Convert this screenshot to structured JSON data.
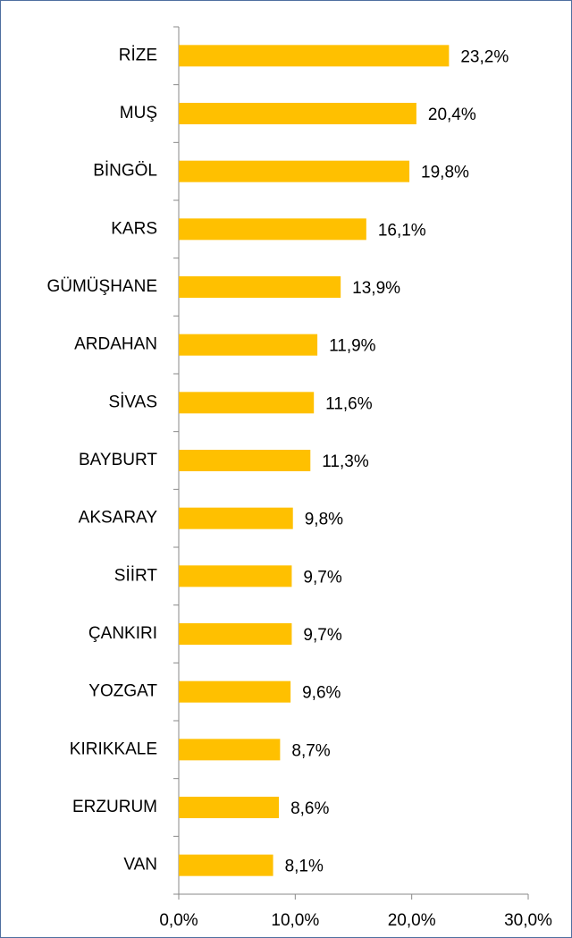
{
  "chart_data": {
    "type": "bar",
    "orientation": "horizontal",
    "categories": [
      "RİZE",
      "MUŞ",
      "BİNGÖL",
      "KARS",
      "GÜMÜŞHANE",
      "ARDAHAN",
      "SİVAS",
      "BAYBURT",
      "AKSARAY",
      "SİİRT",
      "ÇANKIRI",
      "YOZGAT",
      "KIRIKKALE",
      "ERZURUM",
      "VAN"
    ],
    "values": [
      23.2,
      20.4,
      19.8,
      16.1,
      13.9,
      11.9,
      11.6,
      11.3,
      9.8,
      9.7,
      9.7,
      9.6,
      8.7,
      8.6,
      8.1
    ],
    "value_labels": [
      "23,2%",
      "20,4%",
      "19,8%",
      "16,1%",
      "13,9%",
      "11,9%",
      "11,6%",
      "11,3%",
      "9,8%",
      "9,7%",
      "9,7%",
      "9,6%",
      "8,7%",
      "8,6%",
      "8,1%"
    ],
    "color": "#ffc000",
    "xlim": [
      0,
      30
    ],
    "xticks": [
      {
        "value": 0,
        "label": "0,0%"
      },
      {
        "value": 10,
        "label": "10,0%"
      },
      {
        "value": 20,
        "label": "20,0%"
      },
      {
        "value": 30,
        "label": "30,0%"
      }
    ],
    "grid": false
  }
}
